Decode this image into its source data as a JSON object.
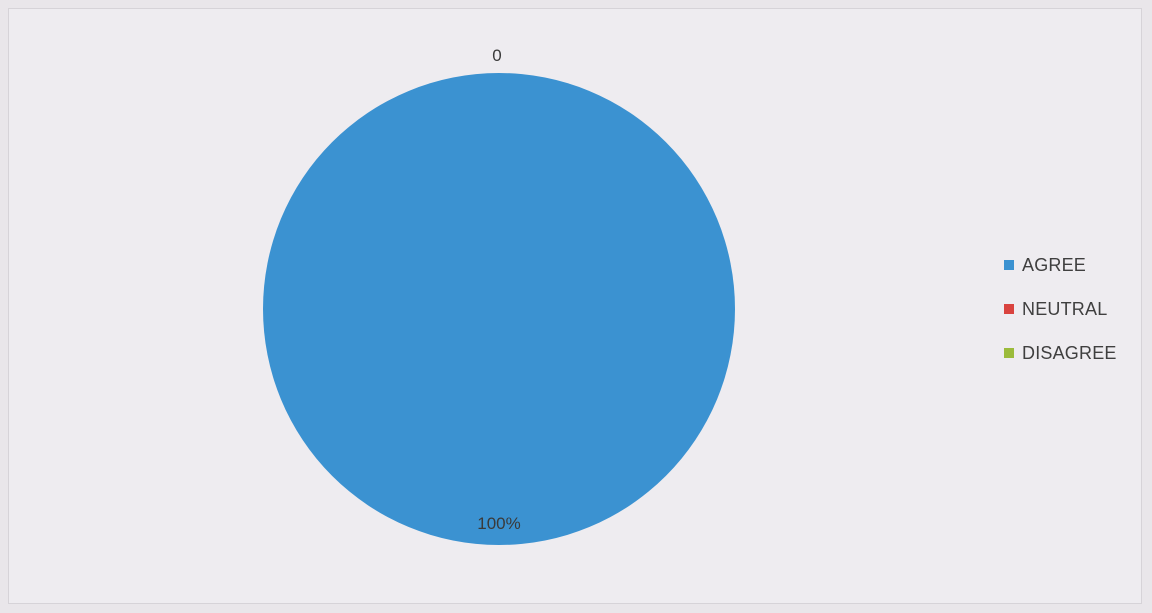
{
  "chart_data": {
    "type": "pie",
    "categories": [
      "AGREE",
      "NEUTRAL",
      "DISAGREE"
    ],
    "values": [
      100,
      0,
      0
    ],
    "colors": [
      "#3b92d1",
      "#d9433f",
      "#9bbb3b"
    ],
    "data_labels": [
      "100%",
      "0",
      "0"
    ],
    "legend_position": "right"
  },
  "legend": {
    "items": [
      {
        "label": "AGREE",
        "color": "#3b92d1"
      },
      {
        "label": "NEUTRAL",
        "color": "#d9433f"
      },
      {
        "label": "DISAGREE",
        "color": "#9bbb3b"
      }
    ]
  }
}
